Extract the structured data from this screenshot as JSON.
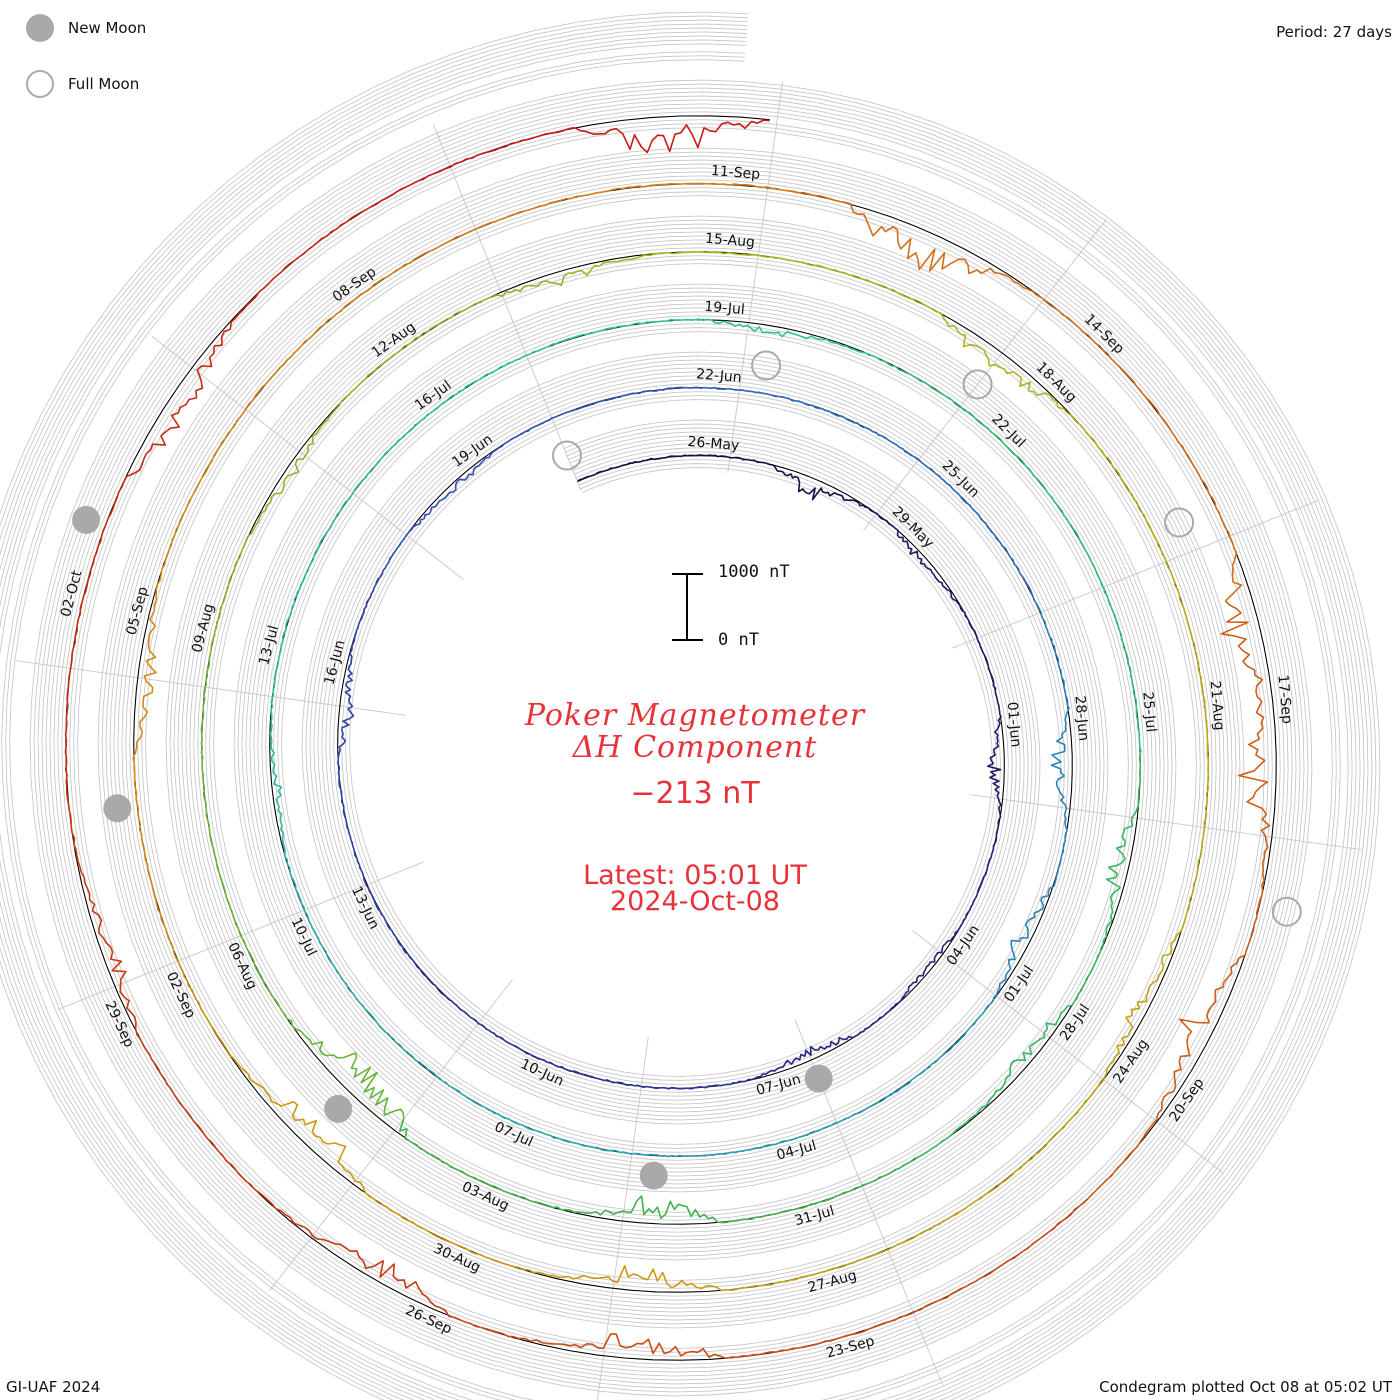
{
  "legend": {
    "new_moon": {
      "label": "New Moon",
      "color": "#a9a9a9"
    },
    "full_moon": {
      "label": "Full Moon",
      "color": "#a9a9a9"
    }
  },
  "period_label": "Period: 27 days",
  "footer": {
    "left": "GI-UAF 2024",
    "right": "Condegram plotted Oct 08 at 05:02 UT"
  },
  "scale": {
    "top_label": "1000 nT",
    "bottom_label": "0 nT"
  },
  "center": {
    "title_line1": "Poker Magnetometer",
    "title_line2": "ΔH Component",
    "current_value": "−213 nT",
    "latest_time": "Latest: 05:01 UT",
    "latest_date": "2024-Oct-08"
  },
  "chart_data": {
    "type": "line",
    "title": "Poker Magnetometer ΔH Component",
    "period_days": 27,
    "start_date": "2024-05-24",
    "end_date": "2024-10-08",
    "scale_nT": [
      0,
      1000
    ],
    "latest_value_nT": -213,
    "tick_labels": [
      "26-May",
      "29-May",
      "01-Jun",
      "04-Jun",
      "07-Jun",
      "10-Jun",
      "13-Jun",
      "16-Jun",
      "19-Jun",
      "22-Jun",
      "25-Jun",
      "28-Jun",
      "01-Jul",
      "04-Jul",
      "07-Jul",
      "10-Jul",
      "13-Jul",
      "16-Jul",
      "19-Jul",
      "22-Jul",
      "25-Jul",
      "28-Jul",
      "31-Jul",
      "03-Aug",
      "06-Aug",
      "09-Aug",
      "12-Aug",
      "15-Aug",
      "18-Aug",
      "21-Aug",
      "24-Aug",
      "27-Aug",
      "30-Aug",
      "02-Sep",
      "05-Sep",
      "08-Sep",
      "11-Sep",
      "14-Sep",
      "17-Sep",
      "20-Sep",
      "23-Sep",
      "26-Sep",
      "29-Sep",
      "02-Oct"
    ],
    "new_moons": [
      "2024-06-06",
      "2024-07-05",
      "2024-08-04",
      "2024-09-03",
      "2024-10-02"
    ],
    "full_moons": [
      "2024-05-23",
      "2024-06-22",
      "2024-07-21",
      "2024-08-19",
      "2024-09-18"
    ],
    "disturbances": [
      {
        "date": "2024-05-27",
        "peak_nT": 330
      },
      {
        "date": "2024-05-29",
        "peak_nT": 180
      },
      {
        "date": "2024-06-01",
        "peak_nT": 270
      },
      {
        "date": "2024-06-04",
        "peak_nT": 120
      },
      {
        "date": "2024-06-06",
        "peak_nT": 230
      },
      {
        "date": "2024-06-15",
        "peak_nT": 250
      },
      {
        "date": "2024-06-18",
        "peak_nT": 180
      },
      {
        "date": "2024-06-28",
        "peak_nT": 320
      },
      {
        "date": "2024-06-30",
        "peak_nT": 300
      },
      {
        "date": "2024-07-11",
        "peak_nT": 160
      },
      {
        "date": "2024-07-19",
        "peak_nT": 170
      },
      {
        "date": "2024-07-26",
        "peak_nT": 330
      },
      {
        "date": "2024-07-28",
        "peak_nT": 280
      },
      {
        "date": "2024-08-01",
        "peak_nT": 450
      },
      {
        "date": "2024-08-04",
        "peak_nT": 700
      },
      {
        "date": "2024-08-10",
        "peak_nT": 170
      },
      {
        "date": "2024-08-13",
        "peak_nT": 200
      },
      {
        "date": "2024-08-17",
        "peak_nT": 380
      },
      {
        "date": "2024-08-23",
        "peak_nT": 300
      },
      {
        "date": "2024-08-28",
        "peak_nT": 420
      },
      {
        "date": "2024-08-31",
        "peak_nT": 500
      },
      {
        "date": "2024-09-04",
        "peak_nT": 280
      },
      {
        "date": "2024-09-12",
        "peak_nT": 700
      },
      {
        "date": "2024-09-16",
        "peak_nT": 650
      },
      {
        "date": "2024-09-17",
        "peak_nT": 600
      },
      {
        "date": "2024-09-19",
        "peak_nT": 550
      },
      {
        "date": "2024-09-24",
        "peak_nT": 420
      },
      {
        "date": "2024-09-26",
        "peak_nT": 380
      },
      {
        "date": "2024-09-29",
        "peak_nT": 300
      },
      {
        "date": "2024-10-03",
        "peak_nT": 450
      },
      {
        "date": "2024-10-07",
        "peak_nT": 600
      }
    ],
    "color_scale": [
      "#140a3c",
      "#2a2a8c",
      "#3355bb",
      "#2a9fb8",
      "#2ec890",
      "#3cb050",
      "#a9b820",
      "#c8a010",
      "#d8781a",
      "#c84a14",
      "#c81414"
    ],
    "grid": true
  }
}
